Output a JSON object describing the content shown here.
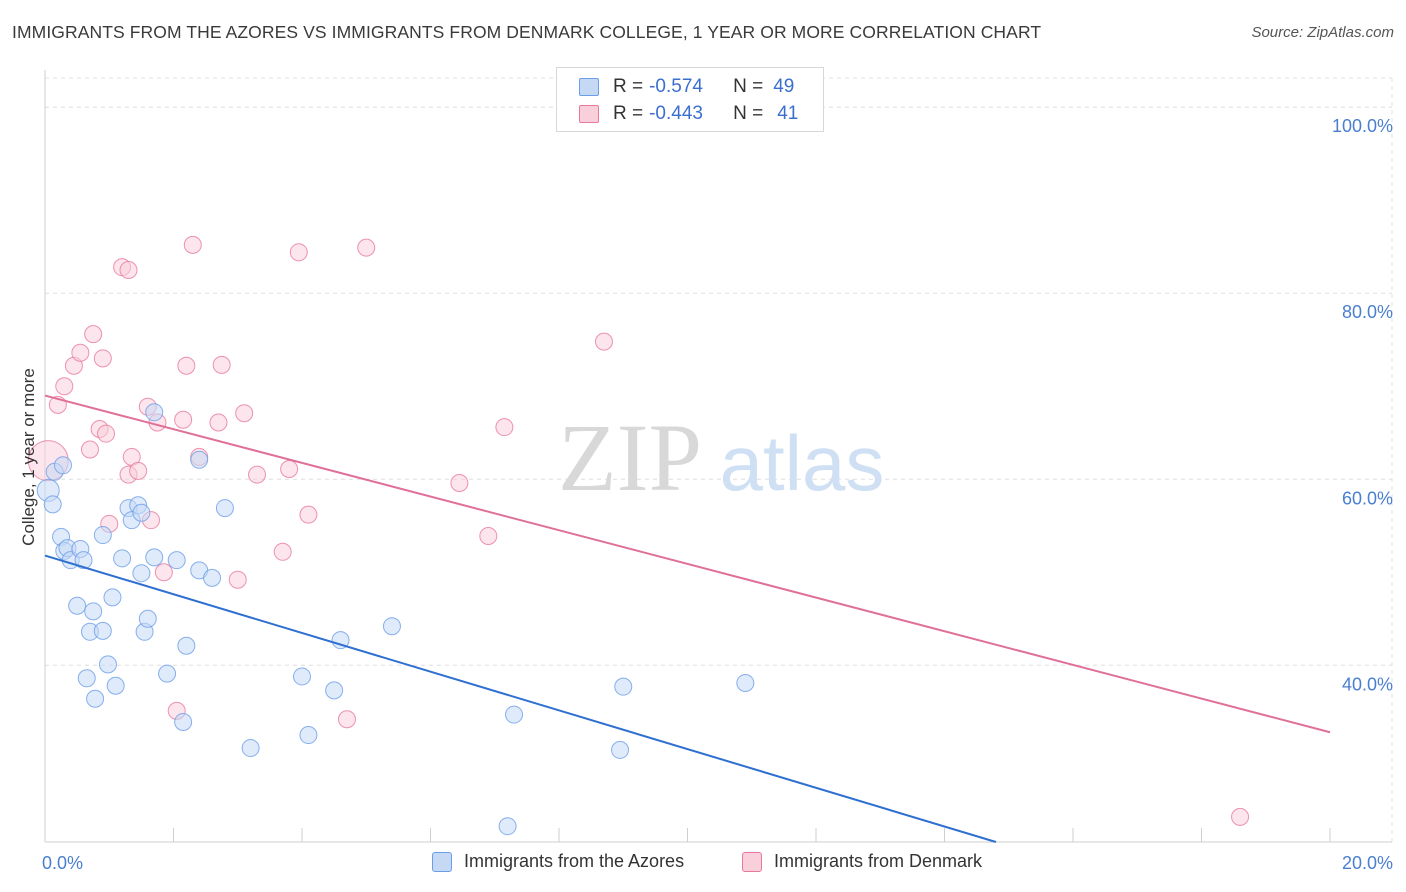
{
  "header": {
    "title": "IMMIGRANTS FROM THE AZORES VS IMMIGRANTS FROM DENMARK COLLEGE, 1 YEAR OR MORE CORRELATION CHART",
    "source": "Source: ZipAtlas.com"
  },
  "watermark": {
    "zip": "ZIP",
    "atlas": "atlas"
  },
  "legend": {
    "rows": [
      {
        "r_label": "R =",
        "r_value": "-0.574",
        "n_label": "N =",
        "n_value": "49"
      },
      {
        "r_label": "R =",
        "r_value": "-0.443",
        "n_label": "N =",
        "n_value": "41"
      }
    ]
  },
  "chart_data": {
    "type": "scatter",
    "title": "IMMIGRANTS FROM THE AZORES VS IMMIGRANTS FROM DENMARK COLLEGE, 1 YEAR OR MORE CORRELATION CHART",
    "xlabel": "",
    "ylabel": "College, 1 year or more",
    "xlim": [
      0,
      20
    ],
    "ylim": [
      21,
      104
    ],
    "x_tick_labels": [
      "0.0%",
      "20.0%"
    ],
    "y_ticks": [
      40,
      60,
      80,
      100
    ],
    "y_tick_labels": [
      "40.0%",
      "60.0%",
      "80.0%",
      "100.0%"
    ],
    "grid": true,
    "legend_position": "top-center",
    "colors": {
      "azores": "#6b9ee8",
      "azores_fill": "#c5d9f5",
      "denmark": "#e8799b",
      "denmark_fill": "#f9cfdc",
      "azores_line": "#2e6fd1",
      "denmark_line": "#e0709a",
      "tick_label": "#4a7fd0"
    },
    "series": [
      {
        "name": "Immigrants from the Azores",
        "key": "azores",
        "trend": {
          "x": [
            0.0,
            14.8
          ],
          "y": [
            51.8,
            21.0
          ]
        },
        "points": [
          [
            0.05,
            58.8
          ],
          [
            0.15,
            60.8
          ],
          [
            0.12,
            57.3
          ],
          [
            0.28,
            61.5
          ],
          [
            0.25,
            53.8
          ],
          [
            0.3,
            52.3
          ],
          [
            0.35,
            52.6
          ],
          [
            0.4,
            51.3
          ],
          [
            0.55,
            52.5
          ],
          [
            0.6,
            51.3
          ],
          [
            0.9,
            54.0
          ],
          [
            1.2,
            51.5
          ],
          [
            1.3,
            56.9
          ],
          [
            1.35,
            55.6
          ],
          [
            1.45,
            57.2
          ],
          [
            1.5,
            56.4
          ],
          [
            1.7,
            51.6
          ],
          [
            1.5,
            49.9
          ],
          [
            2.05,
            51.3
          ],
          [
            2.4,
            50.2
          ],
          [
            2.6,
            49.4
          ],
          [
            2.8,
            56.9
          ],
          [
            2.4,
            62.1
          ],
          [
            1.7,
            67.2
          ],
          [
            0.5,
            46.4
          ],
          [
            0.75,
            45.8
          ],
          [
            1.05,
            47.3
          ],
          [
            0.7,
            43.6
          ],
          [
            0.9,
            43.7
          ],
          [
            1.55,
            43.6
          ],
          [
            1.6,
            45.0
          ],
          [
            0.65,
            38.6
          ],
          [
            0.78,
            36.4
          ],
          [
            0.98,
            40.1
          ],
          [
            1.1,
            37.8
          ],
          [
            1.9,
            39.1
          ],
          [
            2.2,
            42.1
          ],
          [
            3.2,
            31.1
          ],
          [
            2.15,
            33.9
          ],
          [
            4.1,
            32.5
          ],
          [
            4.0,
            38.8
          ],
          [
            4.5,
            37.3
          ],
          [
            4.6,
            42.7
          ],
          [
            5.4,
            44.2
          ],
          [
            7.3,
            34.7
          ],
          [
            8.95,
            30.9
          ],
          [
            9.0,
            37.7
          ],
          [
            10.9,
            38.1
          ],
          [
            7.2,
            22.7
          ]
        ]
      },
      {
        "name": "Immigrants from Denmark",
        "key": "denmark",
        "trend": {
          "x": [
            0.0,
            20.0
          ],
          "y": [
            69.0,
            32.8
          ]
        },
        "points": [
          [
            0.05,
            62.0
          ],
          [
            0.2,
            68.0
          ],
          [
            0.3,
            70.0
          ],
          [
            0.45,
            72.2
          ],
          [
            0.55,
            73.6
          ],
          [
            0.75,
            75.6
          ],
          [
            0.9,
            73.0
          ],
          [
            0.7,
            63.2
          ],
          [
            0.85,
            65.4
          ],
          [
            0.95,
            64.9
          ],
          [
            1.0,
            55.2
          ],
          [
            1.2,
            82.8
          ],
          [
            1.3,
            82.5
          ],
          [
            1.3,
            60.5
          ],
          [
            1.35,
            62.4
          ],
          [
            1.45,
            60.9
          ],
          [
            1.6,
            67.8
          ],
          [
            1.65,
            55.6
          ],
          [
            1.75,
            66.1
          ],
          [
            1.85,
            50.0
          ],
          [
            2.05,
            35.1
          ],
          [
            2.15,
            66.4
          ],
          [
            2.2,
            72.2
          ],
          [
            2.3,
            85.2
          ],
          [
            2.4,
            62.4
          ],
          [
            2.7,
            66.1
          ],
          [
            2.75,
            72.3
          ],
          [
            3.0,
            49.2
          ],
          [
            3.1,
            67.1
          ],
          [
            3.3,
            60.5
          ],
          [
            3.7,
            52.2
          ],
          [
            3.8,
            61.1
          ],
          [
            3.95,
            84.4
          ],
          [
            4.1,
            56.2
          ],
          [
            4.7,
            34.2
          ],
          [
            5.0,
            84.9
          ],
          [
            6.45,
            59.6
          ],
          [
            6.9,
            53.9
          ],
          [
            7.15,
            65.6
          ],
          [
            8.7,
            74.8
          ],
          [
            18.6,
            23.7
          ]
        ]
      }
    ]
  },
  "bottom_legend": {
    "items": [
      {
        "label": "Immigrants from the Azores"
      },
      {
        "label": "Immigrants from Denmark"
      }
    ]
  }
}
